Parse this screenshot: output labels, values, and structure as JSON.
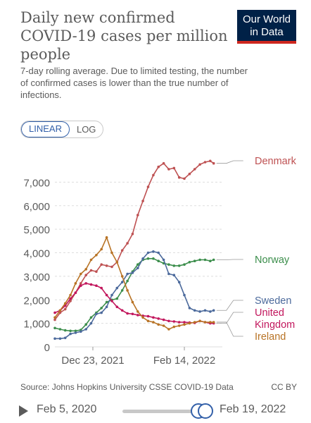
{
  "header": {
    "title": "Daily new confirmed COVID-19 cases per million people",
    "subtitle": "7-day rolling average. Due to limited testing, the number of confirmed cases is lower than the true number of infections.",
    "logo_line1": "Our World",
    "logo_line2": "in Data"
  },
  "controls": {
    "linear_label": "LINEAR",
    "log_label": "LOG",
    "active_scale": "linear"
  },
  "footer": {
    "source": "Source: Johns Hopkins University CSSE COVID-19 Data",
    "license": "CC BY"
  },
  "timeline": {
    "start_label": "Feb 5, 2020",
    "end_label": "Feb 19, 2022",
    "range_fraction": [
      0.97,
      1.0
    ]
  },
  "colors": {
    "text": "#5b5b5b",
    "grid": "#dddddd",
    "accent": "#3360a9",
    "logo_bg": "#002147",
    "logo_bar": "#ce261e"
  },
  "chart_data": {
    "type": "line",
    "x_ticks": [
      "Dec 23, 2021",
      "Feb 14, 2022"
    ],
    "x_tick_days": [
      22,
      75
    ],
    "x_range_days": [
      0,
      97
    ],
    "ylim": [
      0,
      8000
    ],
    "y_ticks": [
      0,
      1000,
      2000,
      3000,
      4000,
      5000,
      6000,
      7000
    ],
    "y_tick_labels": [
      "0",
      "1,000",
      "2,000",
      "3,000",
      "4,000",
      "5,000",
      "6,000",
      "7,000"
    ],
    "grid": "horizontal-dashed",
    "legend": "right-labels",
    "series": [
      {
        "name": "Denmark",
        "color": "#be5152",
        "label_value": 7800,
        "points": [
          [
            0,
            1150
          ],
          [
            3,
            1450
          ],
          [
            6,
            1600
          ],
          [
            9,
            1950
          ],
          [
            12,
            2300
          ],
          [
            15,
            2700
          ],
          [
            18,
            3050
          ],
          [
            21,
            3250
          ],
          [
            24,
            3200
          ],
          [
            27,
            3500
          ],
          [
            30,
            3450
          ],
          [
            33,
            3400
          ],
          [
            36,
            3600
          ],
          [
            39,
            4100
          ],
          [
            42,
            4400
          ],
          [
            45,
            4800
          ],
          [
            48,
            5600
          ],
          [
            51,
            6200
          ],
          [
            54,
            6800
          ],
          [
            57,
            7300
          ],
          [
            60,
            7650
          ],
          [
            63,
            7800
          ],
          [
            66,
            7550
          ],
          [
            69,
            7600
          ],
          [
            72,
            7200
          ],
          [
            75,
            7150
          ],
          [
            78,
            7350
          ],
          [
            81,
            7550
          ],
          [
            84,
            7750
          ],
          [
            87,
            7850
          ],
          [
            90,
            7900
          ],
          [
            92,
            7800
          ]
        ]
      },
      {
        "name": "Norway",
        "color": "#3c8e4c",
        "label_value": 3700,
        "points": [
          [
            0,
            800
          ],
          [
            3,
            750
          ],
          [
            6,
            700
          ],
          [
            9,
            680
          ],
          [
            12,
            680
          ],
          [
            15,
            720
          ],
          [
            18,
            950
          ],
          [
            21,
            1250
          ],
          [
            24,
            1450
          ],
          [
            27,
            1650
          ],
          [
            30,
            1900
          ],
          [
            33,
            2000
          ],
          [
            36,
            2050
          ],
          [
            39,
            2400
          ],
          [
            42,
            2800
          ],
          [
            45,
            3200
          ],
          [
            48,
            3500
          ],
          [
            51,
            3700
          ],
          [
            54,
            3750
          ],
          [
            57,
            3750
          ],
          [
            60,
            3650
          ],
          [
            63,
            3550
          ],
          [
            66,
            3500
          ],
          [
            69,
            3450
          ],
          [
            72,
            3450
          ],
          [
            75,
            3500
          ],
          [
            78,
            3600
          ],
          [
            81,
            3650
          ],
          [
            84,
            3700
          ],
          [
            87,
            3700
          ],
          [
            90,
            3650
          ],
          [
            92,
            3700
          ]
        ]
      },
      {
        "name": "Sweden",
        "color": "#4c6a9c",
        "label_value": 1750,
        "points": [
          [
            0,
            350
          ],
          [
            3,
            350
          ],
          [
            6,
            380
          ],
          [
            9,
            550
          ],
          [
            12,
            600
          ],
          [
            15,
            650
          ],
          [
            18,
            750
          ],
          [
            21,
            1000
          ],
          [
            24,
            1400
          ],
          [
            27,
            1450
          ],
          [
            30,
            1700
          ],
          [
            33,
            2200
          ],
          [
            36,
            2500
          ],
          [
            39,
            2750
          ],
          [
            42,
            3100
          ],
          [
            45,
            3150
          ],
          [
            48,
            3350
          ],
          [
            51,
            3750
          ],
          [
            54,
            4000
          ],
          [
            57,
            4050
          ],
          [
            60,
            4000
          ],
          [
            63,
            3700
          ],
          [
            66,
            3100
          ],
          [
            69,
            3050
          ],
          [
            72,
            2750
          ],
          [
            75,
            2200
          ],
          [
            78,
            1650
          ],
          [
            81,
            1550
          ],
          [
            84,
            1500
          ],
          [
            87,
            1550
          ],
          [
            90,
            1500
          ],
          [
            92,
            1550
          ]
        ]
      },
      {
        "name": "United Kingdom",
        "color": "#c2175d",
        "label_value": 1000,
        "points": [
          [
            0,
            1450
          ],
          [
            3,
            1550
          ],
          [
            6,
            1750
          ],
          [
            9,
            2050
          ],
          [
            12,
            2300
          ],
          [
            15,
            2600
          ],
          [
            18,
            2700
          ],
          [
            21,
            2650
          ],
          [
            24,
            2600
          ],
          [
            27,
            2500
          ],
          [
            30,
            2200
          ],
          [
            33,
            1950
          ],
          [
            36,
            1700
          ],
          [
            39,
            1550
          ],
          [
            42,
            1420
          ],
          [
            45,
            1400
          ],
          [
            48,
            1350
          ],
          [
            51,
            1320
          ],
          [
            54,
            1300
          ],
          [
            57,
            1250
          ],
          [
            60,
            1200
          ],
          [
            63,
            1150
          ],
          [
            66,
            1100
          ],
          [
            69,
            1080
          ],
          [
            72,
            1050
          ],
          [
            75,
            1050
          ],
          [
            78,
            1030
          ],
          [
            81,
            1020
          ],
          [
            84,
            1100
          ],
          [
            87,
            1050
          ],
          [
            90,
            1000
          ],
          [
            92,
            1000
          ]
        ]
      },
      {
        "name": "Ireland",
        "color": "#b87325",
        "label_value": 500,
        "points": [
          [
            0,
            1250
          ],
          [
            3,
            1550
          ],
          [
            6,
            1850
          ],
          [
            9,
            2200
          ],
          [
            12,
            2700
          ],
          [
            15,
            3100
          ],
          [
            18,
            3300
          ],
          [
            21,
            3700
          ],
          [
            24,
            3900
          ],
          [
            27,
            4150
          ],
          [
            30,
            4650
          ],
          [
            33,
            4000
          ],
          [
            36,
            3600
          ],
          [
            39,
            3000
          ],
          [
            42,
            2400
          ],
          [
            45,
            1900
          ],
          [
            48,
            1500
          ],
          [
            51,
            1250
          ],
          [
            54,
            1100
          ],
          [
            57,
            1050
          ],
          [
            60,
            950
          ],
          [
            63,
            900
          ],
          [
            66,
            750
          ],
          [
            69,
            850
          ],
          [
            72,
            900
          ],
          [
            75,
            950
          ],
          [
            78,
            1000
          ],
          [
            81,
            1050
          ],
          [
            84,
            1100
          ],
          [
            87,
            1050
          ],
          [
            90,
            1050
          ],
          [
            92,
            1050
          ]
        ]
      }
    ]
  }
}
